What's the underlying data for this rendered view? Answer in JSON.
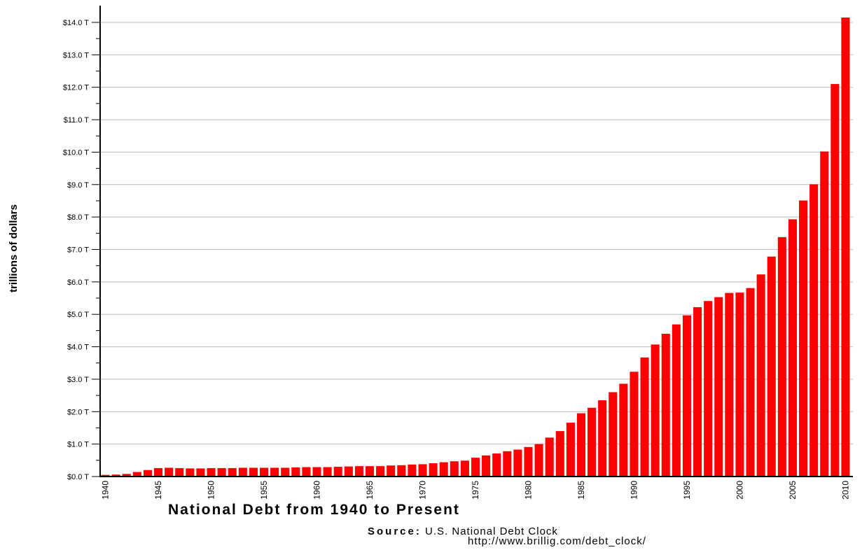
{
  "chart_data": {
    "type": "bar",
    "title": "National Debt from 1940 to Present",
    "ylabel": "trillions of dollars",
    "xlabel": "",
    "ylim": [
      0,
      14.5
    ],
    "y_ticks": [
      {
        "value": 0,
        "label": "$0.0 T"
      },
      {
        "value": 1,
        "label": "$1.0 T"
      },
      {
        "value": 2,
        "label": "$2.0 T"
      },
      {
        "value": 3,
        "label": "$3.0 T"
      },
      {
        "value": 4,
        "label": "$4.0 T"
      },
      {
        "value": 5,
        "label": "$5.0 T"
      },
      {
        "value": 6,
        "label": "$6.0 T"
      },
      {
        "value": 7,
        "label": "$7.0 T"
      },
      {
        "value": 8,
        "label": "$8.0 T"
      },
      {
        "value": 9,
        "label": "$9.0 T"
      },
      {
        "value": 10,
        "label": "$10.0 T"
      },
      {
        "value": 11,
        "label": "$11.0 T"
      },
      {
        "value": 12,
        "label": "$12.0 T"
      },
      {
        "value": 13,
        "label": "$13.0 T"
      },
      {
        "value": 14,
        "label": "$14.0 T"
      }
    ],
    "x_tick_labels": [
      "1940",
      "1945",
      "1950",
      "1955",
      "1960",
      "1965",
      "1970",
      "1975",
      "1980",
      "1985",
      "1990",
      "1995",
      "2000",
      "2005",
      "2010"
    ],
    "categories": [
      1940,
      1941,
      1942,
      1943,
      1944,
      1945,
      1946,
      1947,
      1948,
      1949,
      1950,
      1951,
      1952,
      1953,
      1954,
      1955,
      1956,
      1957,
      1958,
      1959,
      1960,
      1961,
      1962,
      1963,
      1964,
      1965,
      1966,
      1967,
      1968,
      1969,
      1970,
      1971,
      1972,
      1973,
      1974,
      1975,
      1976,
      1977,
      1978,
      1979,
      1980,
      1981,
      1982,
      1983,
      1984,
      1985,
      1986,
      1987,
      1988,
      1989,
      1990,
      1991,
      1992,
      1993,
      1994,
      1995,
      1996,
      1997,
      1998,
      1999,
      2000,
      2001,
      2002,
      2003,
      2004,
      2005,
      2006,
      2007,
      2008,
      2009,
      2010
    ],
    "values": [
      0.05,
      0.06,
      0.08,
      0.14,
      0.2,
      0.26,
      0.27,
      0.26,
      0.25,
      0.25,
      0.26,
      0.26,
      0.26,
      0.27,
      0.27,
      0.27,
      0.27,
      0.27,
      0.28,
      0.29,
      0.29,
      0.29,
      0.3,
      0.31,
      0.32,
      0.32,
      0.32,
      0.34,
      0.35,
      0.37,
      0.38,
      0.41,
      0.44,
      0.47,
      0.49,
      0.58,
      0.65,
      0.71,
      0.78,
      0.83,
      0.91,
      1.0,
      1.2,
      1.4,
      1.66,
      1.95,
      2.12,
      2.35,
      2.6,
      2.86,
      3.23,
      3.67,
      4.07,
      4.4,
      4.69,
      4.97,
      5.22,
      5.41,
      5.53,
      5.66,
      5.67,
      5.81,
      6.23,
      6.78,
      7.38,
      7.93,
      8.51,
      9.01,
      10.02,
      12.1,
      14.15
    ],
    "bar_color": "#ff0000",
    "grid": true
  },
  "source": {
    "label": "Source:",
    "text": "U.S. National Debt Clock",
    "url": "http://www.brillig.com/debt_clock/"
  }
}
